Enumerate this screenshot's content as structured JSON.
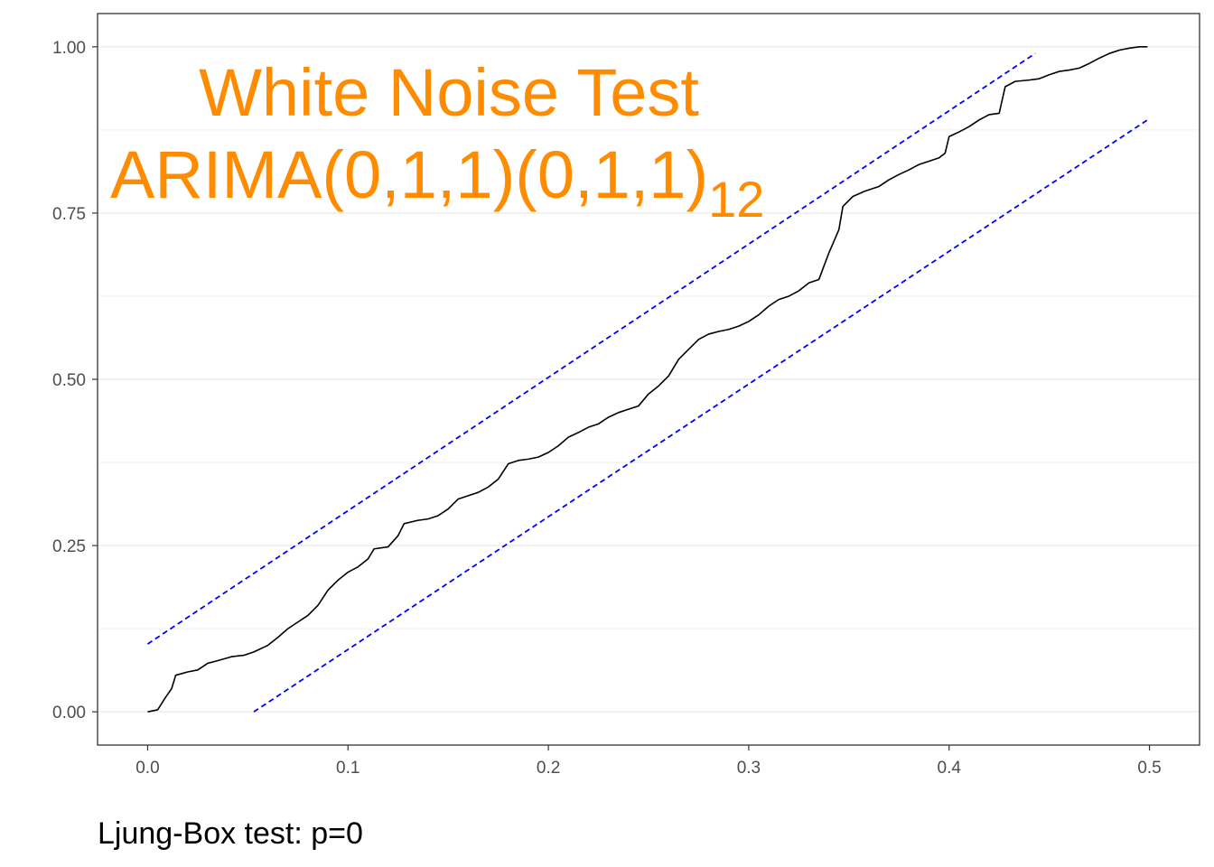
{
  "chart_data": {
    "type": "line",
    "title": "White Noise Test",
    "subtitle": {
      "base": "ARIMA(0,1,1)(0,1,1)",
      "subscript": "12"
    },
    "caption": "Ljung-Box test: p=0",
    "xlabel": "",
    "ylabel": "",
    "xlim": [
      -0.025,
      0.525
    ],
    "ylim": [
      -0.05,
      1.05
    ],
    "x_ticks": [
      0.0,
      0.1,
      0.2,
      0.3,
      0.4,
      0.5
    ],
    "x_tick_labels": [
      "0.0",
      "0.1",
      "0.2",
      "0.3",
      "0.4",
      "0.5"
    ],
    "y_ticks": [
      0.0,
      0.25,
      0.5,
      0.75,
      1.0
    ],
    "y_tick_labels": [
      "0.00",
      "0.25",
      "0.50",
      "0.75",
      "1.00"
    ],
    "grid": true,
    "series": [
      {
        "style": "solid",
        "values": [
          [
            0.0,
            0.0
          ],
          [
            0.005,
            0.003
          ],
          [
            0.009,
            0.022
          ],
          [
            0.012,
            0.035
          ],
          [
            0.014,
            0.055
          ],
          [
            0.02,
            0.06
          ],
          [
            0.025,
            0.063
          ],
          [
            0.03,
            0.073
          ],
          [
            0.035,
            0.077
          ],
          [
            0.042,
            0.083
          ],
          [
            0.048,
            0.085
          ],
          [
            0.053,
            0.09
          ],
          [
            0.06,
            0.1
          ],
          [
            0.065,
            0.112
          ],
          [
            0.07,
            0.125
          ],
          [
            0.075,
            0.135
          ],
          [
            0.08,
            0.145
          ],
          [
            0.085,
            0.16
          ],
          [
            0.09,
            0.183
          ],
          [
            0.095,
            0.198
          ],
          [
            0.1,
            0.21
          ],
          [
            0.105,
            0.218
          ],
          [
            0.11,
            0.23
          ],
          [
            0.113,
            0.245
          ],
          [
            0.12,
            0.248
          ],
          [
            0.125,
            0.265
          ],
          [
            0.128,
            0.283
          ],
          [
            0.135,
            0.288
          ],
          [
            0.14,
            0.29
          ],
          [
            0.145,
            0.295
          ],
          [
            0.15,
            0.305
          ],
          [
            0.155,
            0.32
          ],
          [
            0.16,
            0.325
          ],
          [
            0.165,
            0.33
          ],
          [
            0.17,
            0.338
          ],
          [
            0.175,
            0.35
          ],
          [
            0.18,
            0.373
          ],
          [
            0.185,
            0.378
          ],
          [
            0.19,
            0.38
          ],
          [
            0.195,
            0.383
          ],
          [
            0.2,
            0.39
          ],
          [
            0.205,
            0.4
          ],
          [
            0.21,
            0.413
          ],
          [
            0.215,
            0.42
          ],
          [
            0.22,
            0.428
          ],
          [
            0.225,
            0.433
          ],
          [
            0.23,
            0.443
          ],
          [
            0.235,
            0.45
          ],
          [
            0.24,
            0.455
          ],
          [
            0.245,
            0.46
          ],
          [
            0.25,
            0.478
          ],
          [
            0.255,
            0.49
          ],
          [
            0.26,
            0.505
          ],
          [
            0.265,
            0.53
          ],
          [
            0.27,
            0.545
          ],
          [
            0.275,
            0.56
          ],
          [
            0.28,
            0.568
          ],
          [
            0.285,
            0.572
          ],
          [
            0.29,
            0.575
          ],
          [
            0.295,
            0.58
          ],
          [
            0.3,
            0.587
          ],
          [
            0.305,
            0.597
          ],
          [
            0.31,
            0.61
          ],
          [
            0.315,
            0.62
          ],
          [
            0.32,
            0.625
          ],
          [
            0.325,
            0.633
          ],
          [
            0.33,
            0.645
          ],
          [
            0.335,
            0.65
          ],
          [
            0.34,
            0.69
          ],
          [
            0.345,
            0.725
          ],
          [
            0.347,
            0.76
          ],
          [
            0.352,
            0.775
          ],
          [
            0.358,
            0.783
          ],
          [
            0.365,
            0.79
          ],
          [
            0.37,
            0.8
          ],
          [
            0.375,
            0.808
          ],
          [
            0.38,
            0.815
          ],
          [
            0.385,
            0.823
          ],
          [
            0.39,
            0.828
          ],
          [
            0.395,
            0.833
          ],
          [
            0.398,
            0.84
          ],
          [
            0.4,
            0.865
          ],
          [
            0.405,
            0.872
          ],
          [
            0.41,
            0.88
          ],
          [
            0.415,
            0.89
          ],
          [
            0.42,
            0.898
          ],
          [
            0.425,
            0.9
          ],
          [
            0.428,
            0.94
          ],
          [
            0.433,
            0.948
          ],
          [
            0.44,
            0.95
          ],
          [
            0.445,
            0.952
          ],
          [
            0.45,
            0.958
          ],
          [
            0.455,
            0.963
          ],
          [
            0.46,
            0.965
          ],
          [
            0.465,
            0.968
          ],
          [
            0.47,
            0.975
          ],
          [
            0.475,
            0.983
          ],
          [
            0.48,
            0.99
          ],
          [
            0.485,
            0.995
          ],
          [
            0.49,
            0.998
          ],
          [
            0.495,
            1.0
          ],
          [
            0.499,
            1.0
          ]
        ]
      },
      {
        "style": "dashed",
        "values": [
          [
            0.0,
            0.102
          ],
          [
            0.443,
            0.99
          ]
        ]
      },
      {
        "style": "dashed",
        "values": [
          [
            0.053,
            0.0
          ],
          [
            0.499,
            0.89
          ]
        ]
      }
    ]
  },
  "colors": {
    "title": "#ff8c00",
    "line": "#000000",
    "bands": "#0000ff",
    "grid": "#ebebeb",
    "tick_text": "#4d4d4d",
    "panel_border": "#333333"
  }
}
